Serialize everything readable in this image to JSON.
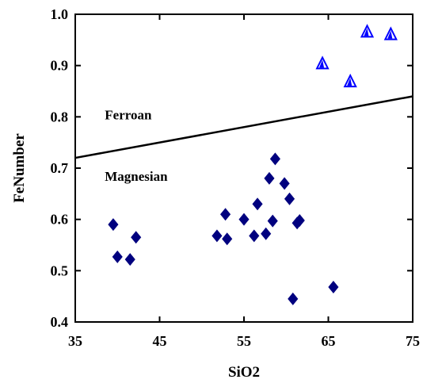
{
  "chart_data": {
    "type": "scatter",
    "title": "",
    "xlabel": "SiO2",
    "ylabel": "FeNumber",
    "xlim": [
      35,
      75
    ],
    "ylim": [
      0.4,
      1.0
    ],
    "x_ticks": [
      35,
      45,
      55,
      65,
      75
    ],
    "x_tick_labels": [
      "35",
      "45",
      "55",
      "65",
      "75"
    ],
    "y_ticks": [
      0.4,
      0.5,
      0.6,
      0.7,
      0.8,
      0.9,
      1.0
    ],
    "y_tick_labels": [
      "0.4",
      "0.5",
      "0.6",
      "0.7",
      "0.8",
      "0.9",
      "1.0"
    ],
    "grid": false,
    "boundary_line": {
      "x": [
        35,
        75
      ],
      "y": [
        0.72,
        0.84
      ]
    },
    "region_labels": [
      {
        "text": "Ferroan",
        "x": 38.5,
        "y": 0.795
      },
      {
        "text": "Magnesian",
        "x": 38.5,
        "y": 0.675
      }
    ],
    "series": [
      {
        "marker": "diamond",
        "color": "#00007f",
        "x": [
          39.5,
          40.0,
          41.5,
          42.2,
          51.8,
          52.8,
          53.0,
          55.0,
          56.2,
          56.6,
          57.6,
          58.0,
          58.4,
          58.7,
          59.8,
          60.4,
          60.8,
          61.3,
          61.6,
          65.6
        ],
        "y": [
          0.59,
          0.527,
          0.522,
          0.565,
          0.568,
          0.61,
          0.562,
          0.6,
          0.568,
          0.63,
          0.572,
          0.68,
          0.597,
          0.718,
          0.67,
          0.64,
          0.445,
          0.593,
          0.598,
          0.468
        ]
      },
      {
        "marker": "triangle",
        "color": "#0000ff",
        "x": [
          64.3,
          67.6,
          69.6,
          72.4
        ],
        "y": [
          0.905,
          0.87,
          0.967,
          0.962
        ]
      }
    ]
  }
}
